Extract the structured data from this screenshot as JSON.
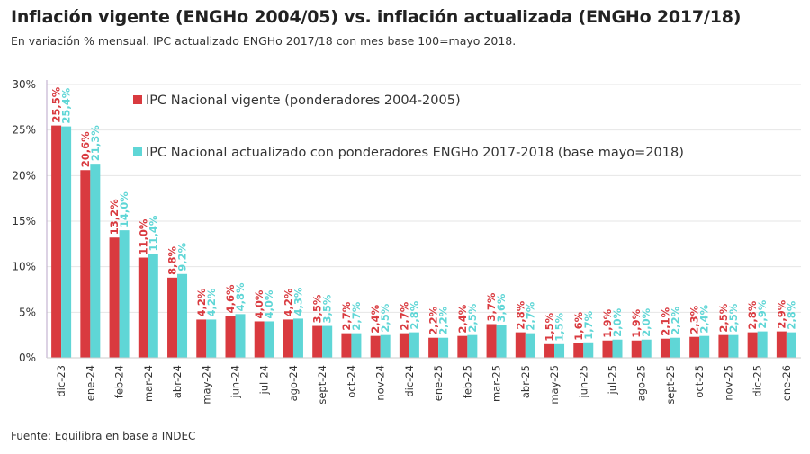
{
  "chart_data": {
    "type": "bar",
    "title": "Inflación vigente (ENGHo 2004/05) vs. inflación actualizada (ENGHo 2017/18)",
    "subtitle": "En variación % mensual. IPC actualizado ENGHo 2017/18 con mes base 100=mayo 2018.",
    "source": "Fuente: Equilibra en base a INDEC",
    "categories": [
      "dic-23",
      "ene-24",
      "feb-24",
      "mar-24",
      "abr-24",
      "may-24",
      "jun-24",
      "jul-24",
      "ago-24",
      "sept-24",
      "oct-24",
      "nov-24",
      "dic-24",
      "ene-25",
      "feb-25",
      "mar-25",
      "abr-25",
      "may-25",
      "jun-25",
      "jul-25",
      "ago-25",
      "sept-25",
      "oct-25",
      "nov-25",
      "dic-25",
      "ene-26"
    ],
    "series": [
      {
        "name": "IPC Nacional vigente (ponderadores 2004-2005)",
        "color": "#d93a3f",
        "values": [
          25.5,
          20.6,
          13.2,
          11.0,
          8.8,
          4.2,
          4.6,
          4.0,
          4.2,
          3.5,
          2.7,
          2.4,
          2.7,
          2.2,
          2.4,
          3.7,
          2.8,
          1.5,
          1.6,
          1.9,
          1.9,
          2.1,
          2.3,
          2.5,
          2.8,
          2.9
        ]
      },
      {
        "name": "IPC Nacional actualizado con ponderadores ENGHo 2017-2018 (base mayo=2018)",
        "color": "#5fd6d6",
        "values": [
          25.4,
          21.3,
          14.0,
          11.4,
          9.2,
          4.2,
          4.8,
          4.0,
          4.3,
          3.5,
          2.7,
          2.5,
          2.8,
          2.2,
          2.5,
          3.6,
          2.7,
          1.5,
          1.7,
          2.0,
          2.0,
          2.2,
          2.4,
          2.5,
          2.9,
          2.8
        ]
      }
    ],
    "yticks": [
      "0%",
      "5%",
      "10%",
      "15%",
      "20%",
      "25%",
      "30%"
    ],
    "ylim": [
      0,
      30
    ],
    "grid": true,
    "legend": "top-center",
    "data_labels": true
  }
}
